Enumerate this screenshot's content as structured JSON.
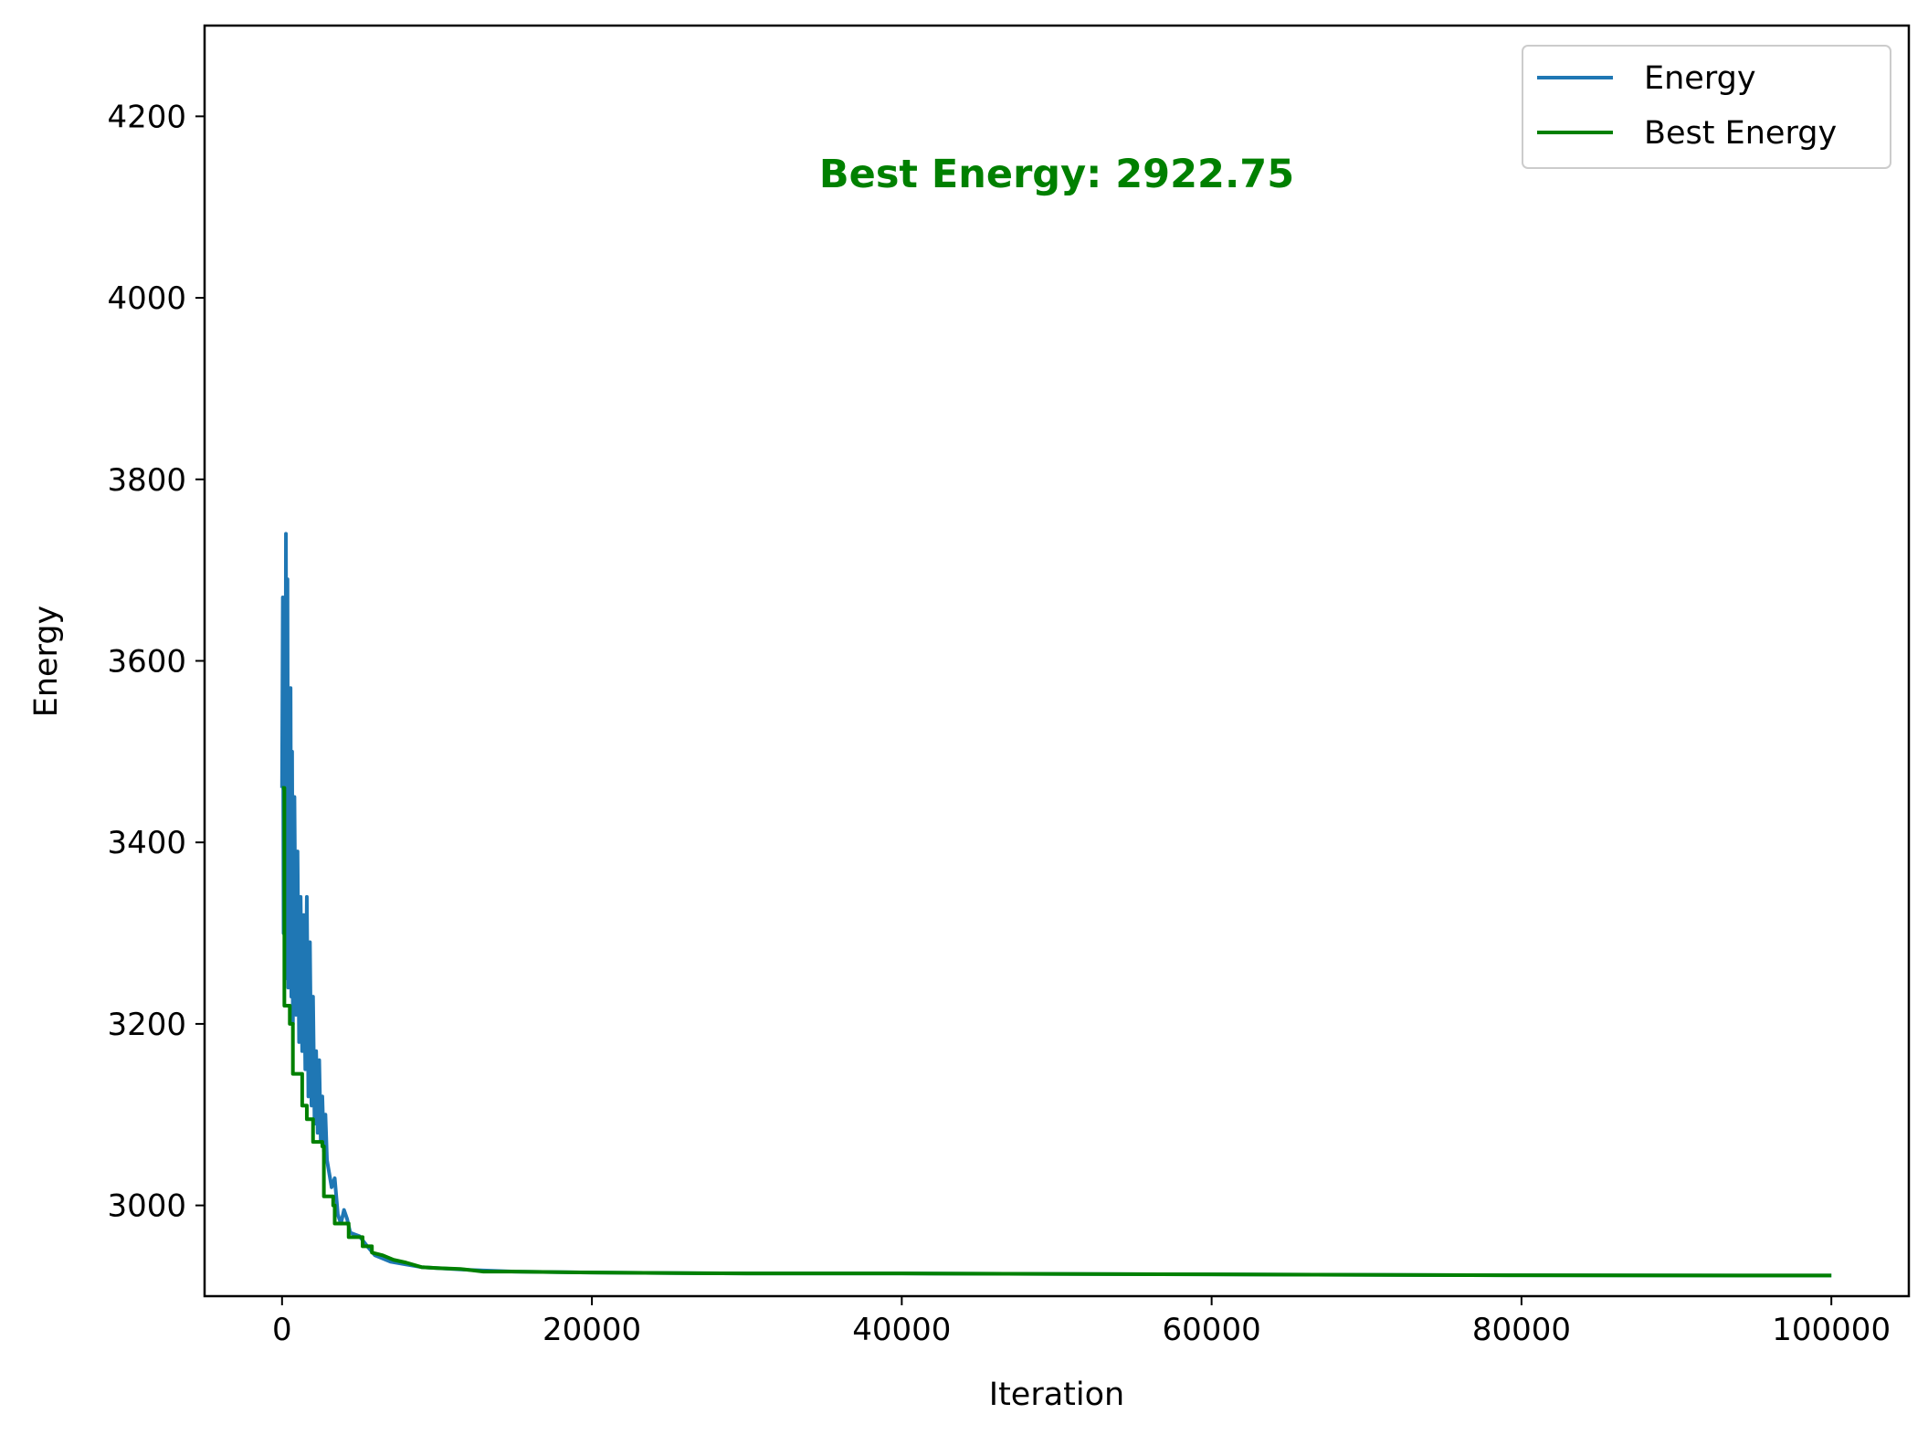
{
  "chart_data": {
    "type": "line",
    "xlabel": "Iteration",
    "ylabel": "Energy",
    "xlim": [
      -5000,
      105000
    ],
    "ylim": [
      2900,
      4300
    ],
    "xticks": [
      0,
      20000,
      40000,
      60000,
      80000,
      100000
    ],
    "yticks": [
      3000,
      3200,
      3400,
      3600,
      3800,
      4000,
      4200
    ],
    "grid": false,
    "legend_position": "upper right",
    "annotation": {
      "text": "Best Energy: 2922.75",
      "x": 50000,
      "y": 4125,
      "color": "#008000"
    },
    "series": [
      {
        "name": "Energy",
        "color": "#1f77b4",
        "points": [
          [
            0,
            3460
          ],
          [
            50,
            3670
          ],
          [
            100,
            3300
          ],
          [
            150,
            3600
          ],
          [
            200,
            3250
          ],
          [
            250,
            3740
          ],
          [
            300,
            3350
          ],
          [
            350,
            3690
          ],
          [
            400,
            3240
          ],
          [
            450,
            3560
          ],
          [
            500,
            3280
          ],
          [
            550,
            3570
          ],
          [
            600,
            3230
          ],
          [
            650,
            3500
          ],
          [
            700,
            3200
          ],
          [
            800,
            3450
          ],
          [
            900,
            3210
          ],
          [
            1000,
            3390
          ],
          [
            1100,
            3180
          ],
          [
            1200,
            3340
          ],
          [
            1300,
            3170
          ],
          [
            1400,
            3320
          ],
          [
            1500,
            3150
          ],
          [
            1600,
            3340
          ],
          [
            1700,
            3120
          ],
          [
            1800,
            3290
          ],
          [
            1900,
            3110
          ],
          [
            2000,
            3230
          ],
          [
            2100,
            3090
          ],
          [
            2200,
            3170
          ],
          [
            2300,
            3080
          ],
          [
            2400,
            3160
          ],
          [
            2500,
            3070
          ],
          [
            2600,
            3120
          ],
          [
            2700,
            3060
          ],
          [
            2800,
            3100
          ],
          [
            2900,
            3050
          ],
          [
            3000,
            3040
          ],
          [
            3200,
            3020
          ],
          [
            3400,
            3030
          ],
          [
            3600,
            2990
          ],
          [
            3800,
            2980
          ],
          [
            4000,
            2995
          ],
          [
            4200,
            2985
          ],
          [
            4400,
            2970
          ],
          [
            4700,
            2968
          ],
          [
            5000,
            2966
          ],
          [
            5500,
            2955
          ],
          [
            6000,
            2945
          ],
          [
            7000,
            2938
          ],
          [
            8000,
            2935
          ],
          [
            9000,
            2932
          ],
          [
            10000,
            2931
          ],
          [
            12000,
            2929
          ],
          [
            15000,
            2927
          ],
          [
            20000,
            2926
          ],
          [
            30000,
            2925
          ],
          [
            40000,
            2925
          ],
          [
            60000,
            2924
          ],
          [
            80000,
            2923
          ],
          [
            100000,
            2922.75
          ]
        ]
      },
      {
        "name": "Best Energy",
        "color": "#008000",
        "points": [
          [
            0,
            3460
          ],
          [
            150,
            3460
          ],
          [
            150,
            3220
          ],
          [
            500,
            3220
          ],
          [
            500,
            3200
          ],
          [
            700,
            3200
          ],
          [
            700,
            3145
          ],
          [
            1300,
            3145
          ],
          [
            1300,
            3110
          ],
          [
            1600,
            3110
          ],
          [
            1600,
            3095
          ],
          [
            2000,
            3095
          ],
          [
            2000,
            3070
          ],
          [
            2600,
            3070
          ],
          [
            2600,
            3065
          ],
          [
            2700,
            3065
          ],
          [
            2700,
            3010
          ],
          [
            3300,
            3010
          ],
          [
            3300,
            3000
          ],
          [
            3400,
            3000
          ],
          [
            3400,
            2980
          ],
          [
            4300,
            2980
          ],
          [
            4300,
            2965
          ],
          [
            5200,
            2965
          ],
          [
            5200,
            2955
          ],
          [
            5800,
            2955
          ],
          [
            5800,
            2948
          ],
          [
            6500,
            2945
          ],
          [
            7200,
            2940
          ],
          [
            8000,
            2937
          ],
          [
            9000,
            2932
          ],
          [
            10000,
            2931
          ],
          [
            11500,
            2930
          ],
          [
            13000,
            2927
          ],
          [
            15000,
            2927
          ],
          [
            20000,
            2926
          ],
          [
            30000,
            2925
          ],
          [
            40000,
            2925
          ],
          [
            60000,
            2924
          ],
          [
            80000,
            2923
          ],
          [
            100000,
            2922.75
          ]
        ]
      }
    ]
  }
}
